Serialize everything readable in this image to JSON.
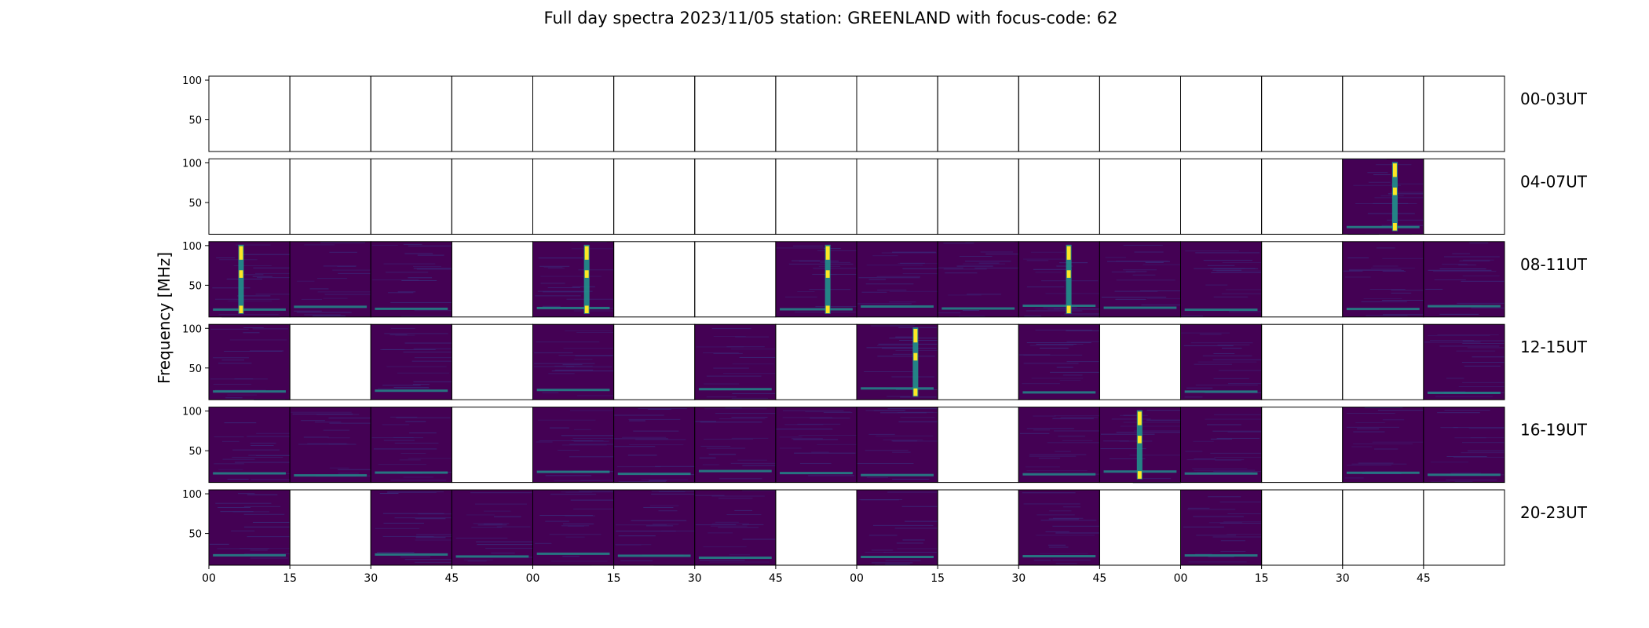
{
  "chart_data": {
    "type": "heatmap",
    "title": "Full day spectra 2023/11/05 station: GREENLAND with focus-code: 62",
    "ylabel": "Frequency [MHz]",
    "xlabel": "",
    "ylim": [
      10,
      105
    ],
    "yticks": [
      50,
      100
    ],
    "xticks": [
      "00",
      "15",
      "30",
      "45",
      "00",
      "15",
      "30",
      "45",
      "00",
      "15",
      "30",
      "45",
      "00",
      "15",
      "30",
      "45"
    ],
    "row_labels": [
      "00-03UT",
      "04-07UT",
      "08-11UT",
      "12-15UT",
      "16-19UT",
      "20-23UT"
    ],
    "colors": {
      "background": "#440154",
      "low": "#3b2a7a",
      "mid": "#21918c",
      "high": "#fde725"
    },
    "panels": [
      [
        0,
        0,
        0,
        0,
        0,
        0,
        0,
        0,
        0,
        0,
        0,
        0,
        0,
        0,
        0,
        0
      ],
      [
        0,
        0,
        0,
        0,
        0,
        0,
        0,
        0,
        0,
        0,
        0,
        0,
        0,
        0,
        1,
        0
      ],
      [
        1,
        1,
        1,
        0,
        1,
        0,
        0,
        1,
        1,
        1,
        1,
        1,
        1,
        0,
        1,
        1
      ],
      [
        1,
        0,
        1,
        0,
        1,
        0,
        1,
        0,
        1,
        0,
        1,
        0,
        1,
        0,
        0,
        1
      ],
      [
        1,
        1,
        1,
        0,
        1,
        1,
        1,
        1,
        1,
        0,
        1,
        1,
        1,
        0,
        1,
        1
      ],
      [
        1,
        0,
        1,
        1,
        1,
        1,
        1,
        0,
        1,
        0,
        1,
        0,
        1,
        0,
        0,
        0
      ]
    ],
    "burst_panels": [
      [
        1,
        14
      ],
      [
        2,
        0
      ],
      [
        2,
        4
      ],
      [
        2,
        7
      ],
      [
        2,
        10
      ],
      [
        3,
        8
      ],
      [
        4,
        11
      ]
    ]
  }
}
